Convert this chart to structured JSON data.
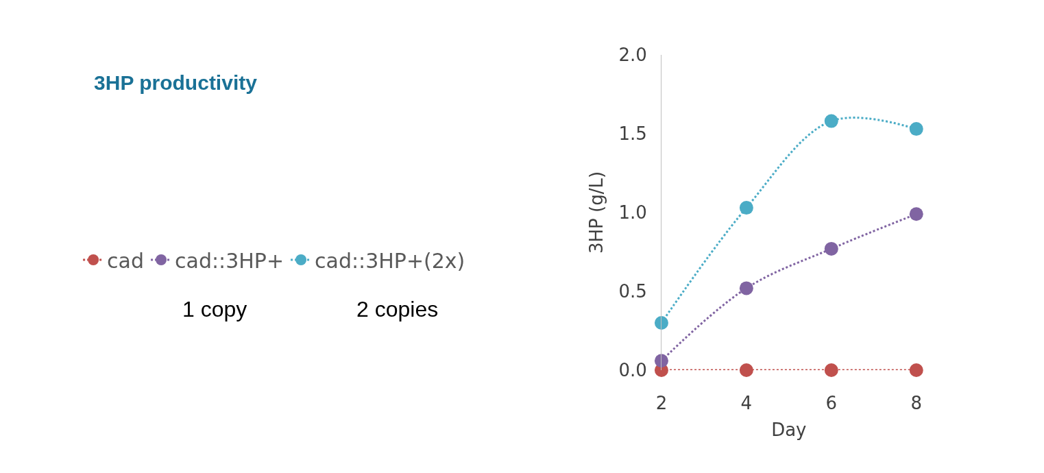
{
  "chart_data": {
    "type": "line",
    "title": "3HP productivity",
    "xlabel": "Day",
    "ylabel": "3HP (g/L)",
    "x": [
      2,
      4,
      6,
      8
    ],
    "series": [
      {
        "name": "cad",
        "color": "#c0504d",
        "values": [
          0,
          0,
          0,
          0
        ]
      },
      {
        "name": "cad::3HP+",
        "color": "#8064a2",
        "values": [
          0.06,
          0.52,
          0.77,
          0.99
        ]
      },
      {
        "name": "cad::3HP+(2x)",
        "color": "#4bacc6",
        "values": [
          0.3,
          1.03,
          1.58,
          1.53
        ]
      }
    ],
    "xlim": [
      2,
      8
    ],
    "xticks": [
      2,
      4,
      6,
      8
    ],
    "ylim": [
      0,
      2
    ],
    "yticks": [
      {
        "value": 0,
        "label": "0.0"
      },
      {
        "value": 0.5,
        "label": "0.5"
      },
      {
        "value": 1,
        "label": "1.0"
      },
      {
        "value": 1.5,
        "label": "1.5"
      },
      {
        "value": 2,
        "label": "2.0"
      }
    ],
    "marker": "circle",
    "line_style": "dotted",
    "legend": "left",
    "annotations": [
      "1 copy",
      "2 copies"
    ]
  }
}
